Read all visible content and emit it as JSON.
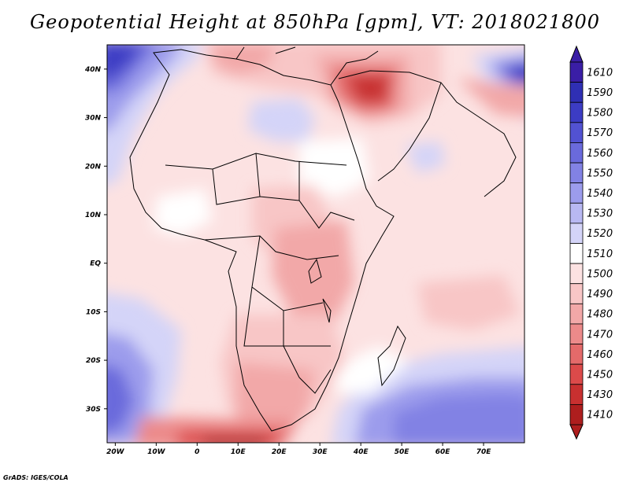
{
  "title": "Geopotential Height at 850hPa [gpm], VT: 2018021800",
  "credit": "GrADS: IGES/COLA",
  "map": {
    "lon_range": [
      -22,
      80
    ],
    "lat_range": [
      -37,
      45
    ],
    "lon_ticks": [
      {
        "lon": -20,
        "label": "20W"
      },
      {
        "lon": -10,
        "label": "10W"
      },
      {
        "lon": 0,
        "label": "0"
      },
      {
        "lon": 10,
        "label": "10E"
      },
      {
        "lon": 20,
        "label": "20E"
      },
      {
        "lon": 30,
        "label": "30E"
      },
      {
        "lon": 40,
        "label": "40E"
      },
      {
        "lon": 50,
        "label": "50E"
      },
      {
        "lon": 60,
        "label": "60E"
      },
      {
        "lon": 70,
        "label": "70E"
      }
    ],
    "lat_ticks": [
      {
        "lat": 40,
        "label": "40N"
      },
      {
        "lat": 30,
        "label": "30N"
      },
      {
        "lat": 20,
        "label": "20N"
      },
      {
        "lat": 10,
        "label": "10N"
      },
      {
        "lat": 0,
        "label": "EQ"
      },
      {
        "lat": -10,
        "label": "10S"
      },
      {
        "lat": -20,
        "label": "20S"
      },
      {
        "lat": -30,
        "label": "30S"
      }
    ]
  },
  "colorbar": {
    "levels": [
      {
        "label": "1610",
        "color": "#3a1ea6"
      },
      {
        "label": "1590",
        "color": "#2f2fb4"
      },
      {
        "label": "1580",
        "color": "#3c3cc4"
      },
      {
        "label": "1570",
        "color": "#5252d2"
      },
      {
        "label": "1560",
        "color": "#6a6adc"
      },
      {
        "label": "1550",
        "color": "#8282e4"
      },
      {
        "label": "1540",
        "color": "#9c9cec"
      },
      {
        "label": "1530",
        "color": "#b8b8f2"
      },
      {
        "label": "1520",
        "color": "#d4d4f8"
      },
      {
        "label": "1510",
        "color": "#ffffff"
      },
      {
        "label": "1500",
        "color": "#fce2e2"
      },
      {
        "label": "1490",
        "color": "#f8c6c6"
      },
      {
        "label": "1480",
        "color": "#f2a8a8"
      },
      {
        "label": "1470",
        "color": "#ec8a8a"
      },
      {
        "label": "1460",
        "color": "#e46a6a"
      },
      {
        "label": "1450",
        "color": "#dc4a4a"
      },
      {
        "label": "1430",
        "color": "#c83030"
      },
      {
        "label": "1410",
        "color": "#ae1e1e"
      }
    ]
  }
}
